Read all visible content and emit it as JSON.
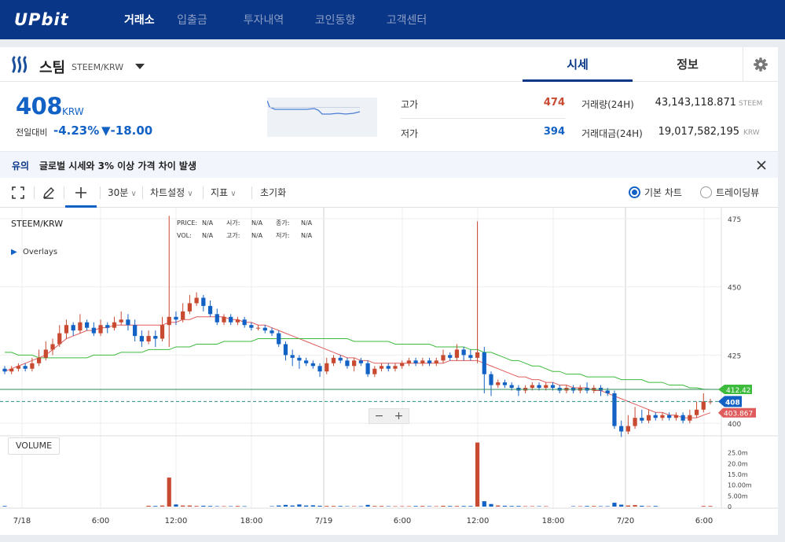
{
  "app": {
    "logo": "UPbit"
  },
  "nav": [
    {
      "label": "거래소",
      "active": true
    },
    {
      "label": "입출금",
      "active": false
    },
    {
      "label": "투자내역",
      "active": false
    },
    {
      "label": "코인동향",
      "active": false
    },
    {
      "label": "고객센터",
      "active": false
    }
  ],
  "coin": {
    "name": "스팀",
    "pair": "STEEM/KRW",
    "tabs": [
      "시세",
      "정보"
    ],
    "price": "408",
    "unit": "KRW",
    "change_label": "전일대비",
    "change_rate": "-4.23%",
    "change_abs": "▼-18.00",
    "high_label": "고가",
    "high": "474",
    "low_label": "저가",
    "low": "394",
    "vol_label": "거래량(24H)",
    "vol": "43,143,118.871",
    "vol_unit": "STEEM",
    "amt_label": "거래대금(24H)",
    "amt": "19,017,582,195",
    "amt_unit": "KRW"
  },
  "notice": {
    "tag": "유의",
    "text": "글로벌 시세와 3% 이상 가격 차이 발생"
  },
  "toolbar": {
    "interval": "30분",
    "chart_settings": "차트설정",
    "indicators": "지표",
    "reset": "초기화",
    "basic_chart": "기본 차트",
    "tradingview": "트레이딩뷰"
  },
  "chart_info": {
    "symbol": "STEEM/KRW",
    "overlays": "Overlays",
    "price_label": "PRICE:",
    "open_label": "시가:",
    "close_label": "종가:",
    "vol_label": "VOL:",
    "high_label": "고가:",
    "low_label": "저가:",
    "na": "N/A",
    "volume_button": "VOLUME",
    "last_price_tag": "408",
    "ma_short_tag": "403.867",
    "ma_long_tag": "412.42"
  },
  "colors": {
    "up": "#c84a31",
    "down": "#1261c4",
    "brand": "#093687",
    "ma_short": "#e05c5c",
    "ma_long": "#3dbb3d"
  },
  "chart_data": {
    "type": "candlestick",
    "y_ticks": [
      400,
      425,
      450,
      475
    ],
    "ylim": [
      396,
      479
    ],
    "volume_ticks": [
      "0",
      "5.00m",
      "10.00m",
      "15.0m",
      "20.0m",
      "25.0m"
    ],
    "x_ticks": [
      "7/18",
      "6:00",
      "12:00",
      "18:00",
      "7/19",
      "6:00",
      "12:00",
      "18:00",
      "7/20",
      "6:00"
    ],
    "candles": [
      [
        420,
        419,
        421,
        418
      ],
      [
        419,
        420,
        421,
        418
      ],
      [
        420,
        421,
        422,
        419
      ],
      [
        421,
        420,
        422,
        419
      ],
      [
        420,
        422,
        424,
        419
      ],
      [
        422,
        424,
        427,
        421
      ],
      [
        424,
        427,
        430,
        423
      ],
      [
        427,
        429,
        431,
        425
      ],
      [
        429,
        433,
        436,
        428
      ],
      [
        433,
        436,
        438,
        431
      ],
      [
        436,
        434,
        437,
        432
      ],
      [
        434,
        437,
        440,
        433
      ],
      [
        437,
        435,
        438,
        434
      ],
      [
        435,
        433,
        437,
        432
      ],
      [
        433,
        436,
        438,
        432
      ],
      [
        436,
        435,
        437,
        433
      ],
      [
        435,
        437,
        439,
        434
      ],
      [
        437,
        438,
        441,
        436
      ],
      [
        438,
        436,
        440,
        434
      ],
      [
        436,
        432,
        438,
        430
      ],
      [
        432,
        430,
        434,
        428
      ],
      [
        430,
        432,
        434,
        429
      ],
      [
        432,
        431,
        434,
        428
      ],
      [
        431,
        436,
        439,
        430
      ],
      [
        436,
        439,
        476,
        428
      ],
      [
        439,
        438,
        441,
        436
      ],
      [
        438,
        441,
        444,
        437
      ],
      [
        441,
        444,
        447,
        440
      ],
      [
        444,
        446,
        448,
        443
      ],
      [
        446,
        443,
        447,
        441
      ],
      [
        443,
        440,
        445,
        439
      ],
      [
        440,
        437,
        442,
        436
      ],
      [
        437,
        439,
        440,
        436
      ],
      [
        439,
        437,
        440,
        436
      ],
      [
        437,
        438,
        439,
        436
      ],
      [
        438,
        436,
        439,
        435
      ],
      [
        436,
        435,
        437,
        434
      ],
      [
        435,
        435,
        436,
        434
      ],
      [
        435,
        434,
        436,
        433
      ],
      [
        434,
        433,
        435,
        432
      ],
      [
        433,
        429,
        434,
        428
      ],
      [
        429,
        425,
        430,
        423
      ],
      [
        425,
        424,
        427,
        421
      ],
      [
        424,
        423,
        425,
        420
      ],
      [
        423,
        422,
        424,
        421
      ],
      [
        422,
        421,
        423,
        420
      ],
      [
        421,
        419,
        422,
        417
      ],
      [
        419,
        422,
        424,
        418
      ],
      [
        422,
        424,
        425,
        421
      ],
      [
        424,
        423,
        425,
        422
      ],
      [
        423,
        421,
        424,
        420
      ],
      [
        421,
        423,
        424,
        419
      ],
      [
        423,
        422,
        424,
        421
      ],
      [
        422,
        418,
        423,
        417
      ],
      [
        418,
        420,
        421,
        417
      ],
      [
        420,
        421,
        422,
        419
      ],
      [
        421,
        420,
        422,
        419
      ],
      [
        420,
        421,
        422,
        419
      ],
      [
        421,
        422,
        423,
        420
      ],
      [
        422,
        423,
        424,
        421
      ],
      [
        423,
        422,
        424,
        421
      ],
      [
        422,
        423,
        424,
        421
      ],
      [
        423,
        422,
        424,
        421
      ],
      [
        422,
        423,
        424,
        421
      ],
      [
        423,
        425,
        427,
        422
      ],
      [
        425,
        424,
        426,
        423
      ],
      [
        424,
        427,
        429,
        423
      ],
      [
        427,
        425,
        428,
        423
      ],
      [
        425,
        424,
        427,
        423
      ],
      [
        424,
        426,
        474,
        422
      ],
      [
        426,
        418,
        428,
        411
      ],
      [
        418,
        414,
        419,
        410
      ],
      [
        414,
        415,
        416,
        413
      ],
      [
        415,
        414,
        416,
        413
      ],
      [
        414,
        413,
        415,
        412
      ],
      [
        413,
        412,
        414,
        410
      ],
      [
        412,
        413,
        414,
        411
      ],
      [
        413,
        414,
        415,
        412
      ],
      [
        414,
        413,
        415,
        412
      ],
      [
        413,
        414,
        415,
        412
      ],
      [
        414,
        413,
        415,
        412
      ],
      [
        413,
        412,
        414,
        411
      ],
      [
        412,
        413,
        414,
        411
      ],
      [
        413,
        412,
        414,
        411
      ],
      [
        412,
        413,
        414,
        411
      ],
      [
        413,
        412,
        415,
        411
      ],
      [
        412,
        413,
        414,
        411
      ],
      [
        413,
        412,
        414,
        410
      ],
      [
        412,
        411,
        413,
        410
      ],
      [
        411,
        399,
        412,
        398
      ],
      [
        399,
        397,
        401,
        395
      ],
      [
        397,
        399,
        403,
        396
      ],
      [
        399,
        402,
        406,
        398
      ],
      [
        402,
        401,
        405,
        400
      ],
      [
        401,
        403,
        405,
        400
      ],
      [
        403,
        402,
        404,
        401
      ],
      [
        402,
        403,
        404,
        401
      ],
      [
        403,
        402,
        404,
        401
      ],
      [
        402,
        403,
        404,
        401
      ],
      [
        403,
        401,
        404,
        400
      ],
      [
        401,
        403,
        405,
        400
      ],
      [
        403,
        405,
        408,
        402
      ],
      [
        405,
        408,
        411,
        404
      ],
      [
        408,
        408,
        409,
        407
      ]
    ],
    "ma_short": [
      419,
      420,
      421,
      422,
      423,
      424,
      425,
      427,
      429,
      431,
      432,
      433,
      434,
      434,
      435,
      435,
      436,
      436,
      436,
      436,
      436,
      436,
      436,
      436,
      437,
      437,
      438,
      438,
      439,
      439,
      439,
      439,
      439,
      438,
      438,
      437,
      437,
      436,
      436,
      435,
      434,
      433,
      432,
      431,
      430,
      429,
      428,
      427,
      426,
      425,
      424,
      424,
      423,
      423,
      422,
      422,
      422,
      422,
      422,
      422,
      422,
      422,
      422,
      422,
      422,
      423,
      423,
      423,
      423,
      423,
      422,
      421,
      420,
      419,
      418,
      417,
      417,
      416,
      416,
      415,
      415,
      414,
      414,
      413,
      413,
      413,
      412,
      412,
      411,
      410,
      409,
      408,
      407,
      406,
      405,
      404,
      404,
      403,
      403,
      402,
      402,
      402,
      403,
      403.867
    ],
    "ma_long": [
      426,
      426,
      425,
      425,
      425,
      424,
      424,
      424,
      424,
      424,
      424,
      424,
      424,
      425,
      425,
      425,
      425,
      426,
      426,
      426,
      426,
      427,
      427,
      427,
      427,
      428,
      428,
      428,
      429,
      429,
      429,
      429,
      430,
      430,
      430,
      430,
      430,
      431,
      431,
      431,
      431,
      431,
      431,
      431,
      431,
      431,
      431,
      431,
      431,
      431,
      431,
      430,
      430,
      430,
      430,
      430,
      430,
      429,
      429,
      429,
      429,
      429,
      429,
      428,
      428,
      428,
      428,
      428,
      427,
      427,
      426,
      426,
      425,
      424,
      423,
      423,
      422,
      421,
      421,
      420,
      419,
      419,
      418,
      418,
      418,
      417,
      417,
      417,
      417,
      417,
      416,
      416,
      416,
      416,
      415,
      415,
      415,
      414,
      414,
      414,
      413,
      413,
      412.5,
      412.42
    ],
    "volumes": [
      0.3,
      0,
      0,
      0,
      0,
      0,
      0,
      0,
      0,
      0,
      0,
      0,
      0,
      0,
      0,
      0,
      0,
      0,
      0,
      0,
      0,
      0.4,
      0.3,
      0.5,
      13.5,
      1.0,
      0.5,
      0.5,
      0.3,
      0.4,
      0.3,
      0.2,
      0.2,
      0.2,
      0.3,
      0.2,
      0,
      0,
      0,
      0.2,
      0.5,
      0.8,
      0.5,
      1.0,
      0.5,
      0.6,
      0.4,
      0.3,
      0.3,
      0.3,
      0.2,
      0.2,
      0.2,
      0.8,
      0.3,
      0.3,
      0.2,
      0.2,
      0.2,
      0.2,
      0.3,
      0.3,
      0.2,
      0.2,
      0.4,
      0.3,
      0.3,
      0.3,
      0.3,
      29.8,
      2.5,
      1.2,
      0.5,
      0.4,
      0.3,
      0.3,
      0.2,
      0.2,
      0.2,
      0.2,
      0,
      0,
      0,
      0.2,
      0.2,
      0.3,
      0.3,
      0.2,
      0.2,
      1.8,
      0.9,
      0.5,
      0.7,
      0.4,
      0.2,
      0.3,
      0,
      0,
      0,
      0,
      0,
      0,
      0.3,
      0.3
    ]
  }
}
